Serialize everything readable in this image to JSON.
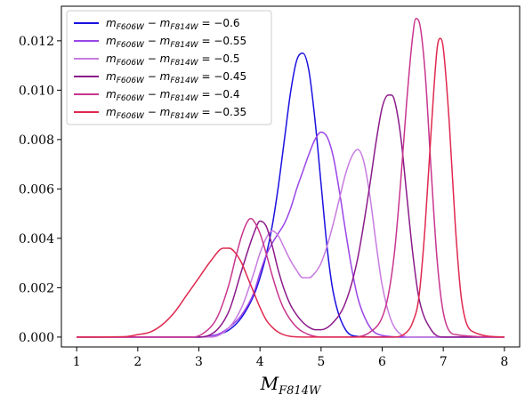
{
  "chart_data": {
    "type": "line",
    "title": "",
    "xlabel": "M_F814W",
    "ylabel": "",
    "xlim": [
      0.75,
      8.25
    ],
    "ylim": [
      -0.0004,
      0.0134
    ],
    "xticks": [
      1,
      2,
      3,
      4,
      5,
      6,
      7,
      8
    ],
    "yticks": [
      0.0,
      0.002,
      0.004,
      0.006,
      0.008,
      0.01,
      0.012
    ],
    "ytick_labels": [
      "0.000",
      "0.002",
      "0.004",
      "0.006",
      "0.008",
      "0.010",
      "0.012"
    ],
    "grid": false,
    "legend_position": "top-left",
    "series": [
      {
        "name": "m_F606W − m_F814W = −0.6",
        "color": "#1a10e0",
        "x": [
          1.0,
          3.0,
          3.3,
          3.5,
          3.7,
          3.9,
          4.0,
          4.1,
          4.2,
          4.3,
          4.4,
          4.5,
          4.6,
          4.7,
          4.8,
          4.9,
          5.0,
          5.1,
          5.2,
          5.4,
          5.6,
          6.0,
          8.0
        ],
        "y": [
          0.0,
          0.0,
          0.0001,
          0.0003,
          0.0008,
          0.0017,
          0.0024,
          0.0033,
          0.0045,
          0.0061,
          0.008,
          0.0099,
          0.0112,
          0.0115,
          0.0108,
          0.0088,
          0.0062,
          0.0036,
          0.0018,
          0.0003,
          3e-05,
          0.0,
          0.0
        ]
      },
      {
        "name": "m_F606W − m_F814W = −0.55",
        "color": "#9b45e6",
        "x": [
          1.0,
          3.0,
          3.3,
          3.5,
          3.7,
          3.9,
          4.0,
          4.1,
          4.2,
          4.3,
          4.4,
          4.5,
          4.6,
          4.7,
          4.8,
          4.9,
          5.0,
          5.1,
          5.2,
          5.3,
          5.4,
          5.5,
          5.6,
          5.8,
          6.0,
          6.4,
          8.0
        ],
        "y": [
          0.0,
          0.0,
          0.0001,
          0.0004,
          0.0009,
          0.0018,
          0.0026,
          0.0033,
          0.0038,
          0.0042,
          0.0046,
          0.0052,
          0.006,
          0.0067,
          0.0074,
          0.008,
          0.0083,
          0.0081,
          0.0073,
          0.0059,
          0.0043,
          0.0028,
          0.0016,
          0.0004,
          7e-05,
          0.0,
          0.0
        ]
      },
      {
        "name": "m_F606W − m_F814W = −0.5",
        "color": "#c77bdf",
        "x": [
          1.0,
          3.2,
          3.5,
          3.7,
          3.9,
          4.0,
          4.1,
          4.2,
          4.3,
          4.4,
          4.5,
          4.6,
          4.7,
          4.8,
          4.9,
          5.0,
          5.1,
          5.2,
          5.3,
          5.4,
          5.5,
          5.6,
          5.7,
          5.8,
          5.9,
          6.0,
          6.2,
          6.5,
          8.0
        ],
        "y": [
          0.0,
          0.0,
          0.0004,
          0.0012,
          0.0026,
          0.0034,
          0.004,
          0.0043,
          0.0041,
          0.0036,
          0.0031,
          0.0027,
          0.0024,
          0.0024,
          0.0026,
          0.003,
          0.0037,
          0.0046,
          0.0056,
          0.0066,
          0.0073,
          0.0076,
          0.0071,
          0.0057,
          0.0038,
          0.0021,
          0.0004,
          0.0,
          0.0
        ]
      },
      {
        "name": "m_F606W − m_F814W = −0.45",
        "color": "#8b1a8a",
        "x": [
          1.0,
          3.0,
          3.3,
          3.5,
          3.7,
          3.9,
          4.0,
          4.1,
          4.2,
          4.3,
          4.4,
          4.5,
          4.6,
          4.7,
          4.8,
          4.9,
          5.0,
          5.2,
          5.4,
          5.6,
          5.8,
          5.9,
          6.0,
          6.1,
          6.15,
          6.2,
          6.3,
          6.4,
          6.5,
          6.6,
          6.8,
          7.0,
          8.0
        ],
        "y": [
          0.0,
          0.0,
          0.0003,
          0.0011,
          0.0027,
          0.0042,
          0.0047,
          0.0045,
          0.0037,
          0.0027,
          0.0019,
          0.0013,
          0.0009,
          0.0006,
          0.0004,
          0.0003,
          0.0003,
          0.0006,
          0.0014,
          0.0032,
          0.0062,
          0.0079,
          0.0093,
          0.0098,
          0.0098,
          0.0096,
          0.0082,
          0.0058,
          0.0034,
          0.0016,
          0.0003,
          0.0,
          0.0
        ]
      },
      {
        "name": "m_F606W − m_F814W = −0.4",
        "color": "#c8358e",
        "x": [
          1.0,
          2.9,
          3.1,
          3.3,
          3.5,
          3.6,
          3.7,
          3.8,
          3.85,
          3.9,
          4.0,
          4.1,
          4.2,
          4.3,
          4.4,
          4.6,
          4.8,
          5.0,
          5.5,
          5.8,
          6.0,
          6.1,
          6.2,
          6.3,
          6.4,
          6.5,
          6.55,
          6.6,
          6.7,
          6.8,
          6.9,
          7.0,
          7.2,
          8.0
        ],
        "y": [
          0.0,
          0.0,
          0.0002,
          0.0008,
          0.0022,
          0.0032,
          0.0041,
          0.0047,
          0.0048,
          0.0047,
          0.0042,
          0.0034,
          0.0025,
          0.0017,
          0.0011,
          0.0004,
          0.0001,
          0.0,
          0.0,
          0.0002,
          0.0008,
          0.0017,
          0.0034,
          0.0062,
          0.0095,
          0.0122,
          0.0129,
          0.0128,
          0.0108,
          0.0068,
          0.0031,
          0.001,
          0.0001,
          0.0
        ]
      },
      {
        "name": "m_F606W − m_F814W = −0.35",
        "color": "#e0284f",
        "x": [
          1.0,
          1.8,
          2.0,
          2.2,
          2.4,
          2.6,
          2.8,
          3.0,
          3.2,
          3.4,
          3.5,
          3.6,
          3.7,
          3.8,
          3.9,
          4.0,
          4.1,
          4.2,
          4.3,
          4.5,
          4.8,
          5.0,
          6.2,
          6.4,
          6.5,
          6.6,
          6.7,
          6.8,
          6.9,
          6.95,
          7.0,
          7.1,
          7.2,
          7.3,
          7.5,
          8.0
        ],
        "y": [
          0.0,
          2e-05,
          0.0001,
          0.0002,
          0.0005,
          0.001,
          0.0017,
          0.0024,
          0.0031,
          0.0036,
          0.0036,
          0.0034,
          0.003,
          0.0024,
          0.0018,
          0.0012,
          0.0007,
          0.0004,
          0.0002,
          3e-05,
          0.0,
          0.0,
          0.0,
          0.0002,
          0.0006,
          0.0016,
          0.0044,
          0.0083,
          0.0117,
          0.0121,
          0.0117,
          0.0086,
          0.0044,
          0.0015,
          0.0002,
          0.0
        ]
      }
    ]
  },
  "legend": {
    "items": [
      {
        "lhs_main": "m",
        "lhs_sub": "F606W",
        "mid": " − ",
        "rhs_main": "m",
        "rhs_sub": "F814W",
        "value": " = −0.6"
      },
      {
        "lhs_main": "m",
        "lhs_sub": "F606W",
        "mid": " − ",
        "rhs_main": "m",
        "rhs_sub": "F814W",
        "value": " = −0.55"
      },
      {
        "lhs_main": "m",
        "lhs_sub": "F606W",
        "mid": " − ",
        "rhs_main": "m",
        "rhs_sub": "F814W",
        "value": " = −0.5"
      },
      {
        "lhs_main": "m",
        "lhs_sub": "F606W",
        "mid": " − ",
        "rhs_main": "m",
        "rhs_sub": "F814W",
        "value": " = −0.45"
      },
      {
        "lhs_main": "m",
        "lhs_sub": "F606W",
        "mid": " − ",
        "rhs_main": "m",
        "rhs_sub": "F814W",
        "value": " = −0.4"
      },
      {
        "lhs_main": "m",
        "lhs_sub": "F606W",
        "mid": " − ",
        "rhs_main": "m",
        "rhs_sub": "F814W",
        "value": " = −0.35"
      }
    ]
  },
  "xaxis_label": {
    "main": "M",
    "sub": "F814W"
  }
}
